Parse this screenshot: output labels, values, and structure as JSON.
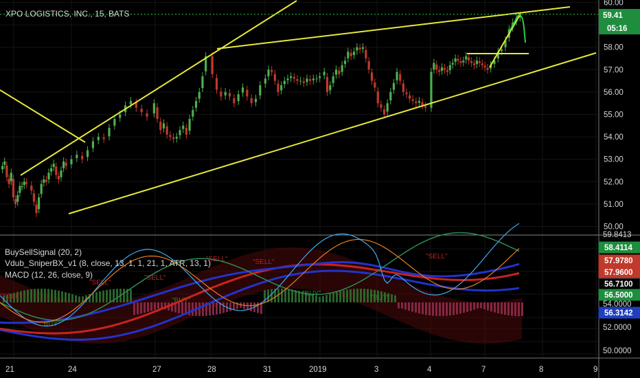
{
  "title": "XPO LOGISTICS, INC., 15, BATS",
  "indicators": [
    "BuySellSignal (20, 2)",
    "Vdub_SniperBX_v1 (8, close, 13, 1, 1, 21, 1, ATR, 13, 1)",
    "MACD (12, 26, close, 9)"
  ],
  "last_price_badge": {
    "price": "59.41",
    "countdown": "05:16",
    "color": "#1e8e3e"
  },
  "colors": {
    "bull": "#4caf50",
    "bear": "#c0392b",
    "trendline": "#e8e83a",
    "arrow": "#2ecc40"
  },
  "time_axis": [
    "21",
    "24",
    "27",
    "28",
    "31",
    "2019",
    "3",
    "4",
    "7",
    "8",
    "9"
  ],
  "upper_price_axis": [
    "60.00",
    "59.00",
    "58.00",
    "57.00",
    "56.00",
    "55.00",
    "54.00",
    "53.00",
    "52.00",
    "51.00",
    "50.00"
  ],
  "lower_axis": [
    "59.8413",
    "54.0000",
    "52.0000",
    "50.0000"
  ],
  "lower_badges": [
    {
      "label": "58.4114",
      "color": "#1e8e3e",
      "text_color": "#ffffff"
    },
    {
      "label": "57.9780",
      "color": "#c0392b",
      "text_color": "#ffffff"
    },
    {
      "label": "57.9600",
      "color": "#c0392b",
      "text_color": "#ffffff"
    },
    {
      "label": "56.7100",
      "color": "#000000",
      "text_color": "#ffffff"
    },
    {
      "label": "56.5000",
      "color": "#1e8e3e",
      "text_color": "#ffffff"
    },
    {
      "label": "56.3142",
      "color": "#1f3fbf",
      "text_color": "#ffffff"
    }
  ],
  "signal_text": {
    "sell": "\"SELL\"",
    "buy": "\"BUY\""
  },
  "chart_data": {
    "type": "candlestick",
    "title": "XPO LOGISTICS, INC., 15, BATS",
    "ylim": [
      49.8,
      60.2
    ],
    "close_series": [
      {
        "session": "21",
        "values": [
          52.7,
          52.9,
          52.2,
          51.9,
          52.4,
          51.3,
          51.0,
          51.4,
          51.8,
          51.8,
          52.0,
          51.9
        ]
      },
      {
        "session": "24",
        "values": [
          51.6,
          51.1,
          50.6,
          51.3,
          51.9,
          52.1,
          52.0,
          52.4,
          52.6,
          52.8,
          52.3,
          52.1,
          52.5,
          52.9,
          52.7
        ]
      },
      {
        "session": "26",
        "values": [
          53.0,
          53.2,
          53.0,
          53.4,
          53.8,
          54.0,
          53.9,
          54.4,
          54.8,
          55.0,
          55.4,
          55.6,
          55.3,
          55.1,
          54.9
        ]
      },
      {
        "session": "27",
        "values": [
          55.5,
          54.8,
          54.3,
          54.6,
          54.1,
          54.0,
          53.9,
          54.0,
          54.3,
          54.5,
          54.1,
          54.8,
          55.2,
          55.6,
          56.0,
          56.7,
          57.6
        ]
      },
      {
        "session": "28",
        "values": [
          56.8,
          56.1,
          55.8,
          56.0,
          55.8,
          55.5,
          55.9,
          56.2,
          55.8,
          55.5,
          55.7,
          56.3
        ]
      },
      {
        "session": "31",
        "values": [
          56.6,
          57.0,
          56.9,
          56.5,
          56.0,
          56.3,
          56.5,
          56.6,
          56.7,
          56.6,
          56.5,
          56.5,
          56.4,
          56.6,
          56.5,
          56.6,
          56.6,
          56.7
        ]
      },
      {
        "session": "2019",
        "values": [
          56.9,
          56.0,
          56.3,
          56.7,
          57.0,
          56.8,
          57.2,
          57.4,
          57.8,
          57.6,
          57.8,
          58.0,
          57.9,
          58.0,
          57.5,
          57.0,
          56.5,
          56.2
        ]
      },
      {
        "session": "3",
        "values": [
          55.5,
          55.3,
          55.0,
          55.5,
          56.0,
          56.4,
          56.9,
          56.5,
          56.0,
          55.9,
          55.7,
          55.6,
          55.5,
          55.6,
          55.4,
          55.3
        ]
      },
      {
        "session": "4",
        "values": [
          56.9,
          57.3,
          57.0,
          56.9,
          57.1,
          57.0,
          56.9,
          57.2,
          57.3,
          57.5,
          57.4,
          57.3,
          57.4,
          57.6,
          57.4,
          57.3,
          57.2,
          57.4,
          57.3,
          57.2,
          57.1,
          57.0
        ]
      },
      {
        "session": "7",
        "values": [
          57.2,
          57.4,
          57.8,
          57.9,
          58.3,
          58.8,
          59.1,
          59.3,
          59.4
        ]
      }
    ],
    "trendlines": [
      {
        "from": [
          "~20",
          57.1
        ],
        "to": [
          "~24",
          53.7
        ]
      },
      {
        "from": [
          "21",
          52.0
        ],
        "to": [
          "~27 late",
          60.2
        ]
      },
      {
        "from": [
          "28",
          57.8
        ],
        "to": [
          "7 late",
          59.6
        ]
      },
      {
        "from": [
          "24",
          50.5
        ],
        "to": [
          "9",
          57.6
        ]
      },
      {
        "from": [
          "~4 late",
          57.7
        ],
        "to": [
          "7 late",
          57.6
        ]
      },
      {
        "from": [
          "7",
          57.1
        ],
        "to": [
          "7 late",
          59.5
        ]
      }
    ]
  }
}
